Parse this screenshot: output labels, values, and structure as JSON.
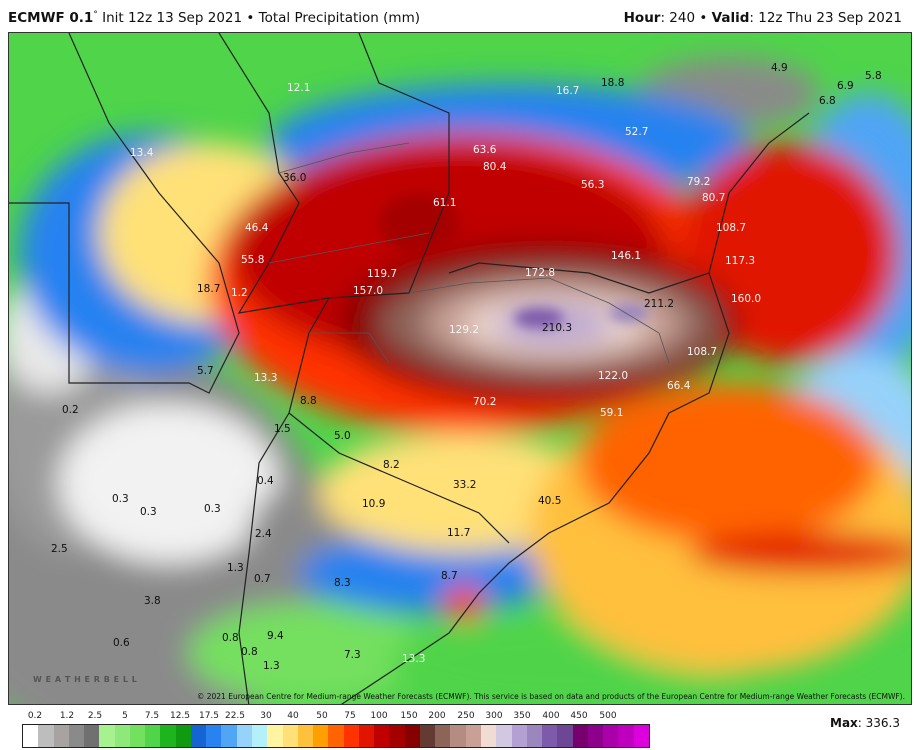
{
  "header": {
    "model": "ECMWF 0.1",
    "degree": "°",
    "init": "Init 12z 13 Sep 2021",
    "sep": "•",
    "product": "Total Precipitation (mm)",
    "hour_label": "Hour",
    "hour": ": 240",
    "valid_label": "Valid",
    "valid": ": 12z Thu 23 Sep 2021"
  },
  "copyright": "© 2021 European Centre for Medium-range Weather Forecasts (ECMWF). This service is based on data and products of the European Centre for Medium-range Weather Forecasts (ECMWF).",
  "logo": "WEATHERBELL",
  "legend": {
    "ticks": [
      "0.2",
      "1.2",
      "2.5",
      "5",
      "7.5",
      "12.5",
      "17.5",
      "22.5",
      "30",
      "40",
      "50",
      "75",
      "100",
      "150",
      "200",
      "250",
      "300",
      "350",
      "400",
      "450",
      "500"
    ],
    "colors": [
      "#ffffff",
      "#bdbdbd",
      "#a8a3a3",
      "#8a8a8a",
      "#707070",
      "#a6f28f",
      "#8ee97a",
      "#74e05f",
      "#4fd44a",
      "#1eb41e",
      "#0f9a0f",
      "#1464d2",
      "#2882f0",
      "#50a5f5",
      "#96d2fa",
      "#b4f0fa",
      "#fff5a0",
      "#ffe178",
      "#ffc03c",
      "#ffa000",
      "#ff6400",
      "#ff3200",
      "#e11400",
      "#c00000",
      "#a50000",
      "#870000",
      "#643b33",
      "#8c6458",
      "#b48c82",
      "#c8a096",
      "#f0dcd2",
      "#d2c8e1",
      "#b4a0d2",
      "#9b87be",
      "#7d5aaa",
      "#6e4696",
      "#78006e",
      "#8c008c",
      "#aa00aa",
      "#be00be",
      "#dc00dc"
    ]
  },
  "max_label": "Max",
  "max_value": ": 336.3",
  "map_labels": [
    "12.1",
    "16.7",
    "18.8",
    "4.9",
    "5.8",
    "6.9",
    "6.8",
    "13.4",
    "52.7",
    "63.6",
    "80.4",
    "56.3",
    "79.2",
    "80.7",
    "36.0",
    "61.1",
    "108.7",
    "46.4",
    "55.8",
    "146.1",
    "117.3",
    "119.7",
    "157.0",
    "18.7",
    "1.2",
    "172.8",
    "211.2",
    "160.0",
    "129.2",
    "210.3",
    "108.7",
    "122.0",
    "66.4",
    "5.7",
    "13.3",
    "70.2",
    "8.8",
    "59.1",
    "0.2",
    "1.5",
    "5.0",
    "8.2",
    "0.4",
    "33.2",
    "0.3",
    "0.3",
    "0.3",
    "10.9",
    "40.5",
    "2.4",
    "11.7",
    "2.5",
    "1.3",
    "0.7",
    "8.3",
    "8.7",
    "3.8",
    "0.8",
    "0.8",
    "9.4",
    "0.6",
    "1.3",
    "7.3",
    "13.3"
  ]
}
